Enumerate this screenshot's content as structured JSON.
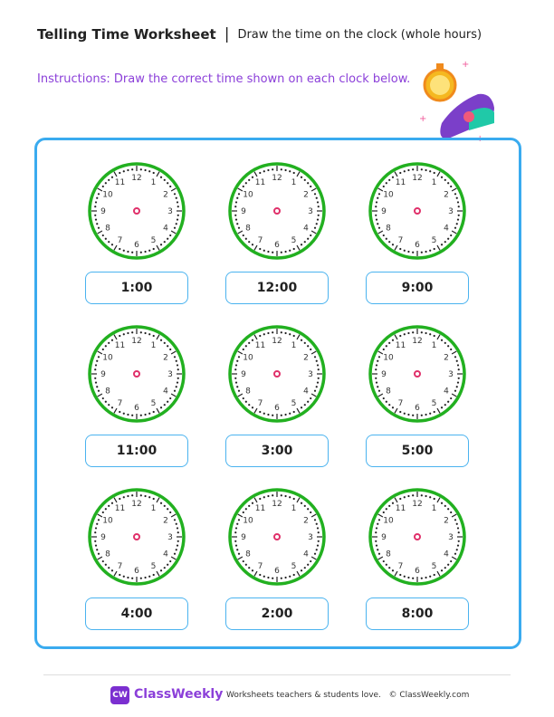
{
  "header": {
    "title": "Telling Time Worksheet",
    "separator": "|",
    "subtitle": "Draw the time on the clock (whole hours)"
  },
  "instructions": {
    "label": "Instructions:",
    "text": " Draw the correct time shown on each clock below."
  },
  "clocks": [
    {
      "time": "1:00"
    },
    {
      "time": "12:00"
    },
    {
      "time": "9:00"
    },
    {
      "time": "11:00"
    },
    {
      "time": "3:00"
    },
    {
      "time": "5:00"
    },
    {
      "time": "4:00"
    },
    {
      "time": "2:00"
    },
    {
      "time": "8:00"
    }
  ],
  "colors": {
    "accent": "#8b3fd9",
    "frame": "#3aabef",
    "clock_rim": "#22b020",
    "center": "#e0306a"
  },
  "footer": {
    "logo": "CW",
    "brand": "ClassWeekly",
    "tagline": "Worksheets teachers & students love.",
    "copyright": "© ClassWeekly.com"
  }
}
